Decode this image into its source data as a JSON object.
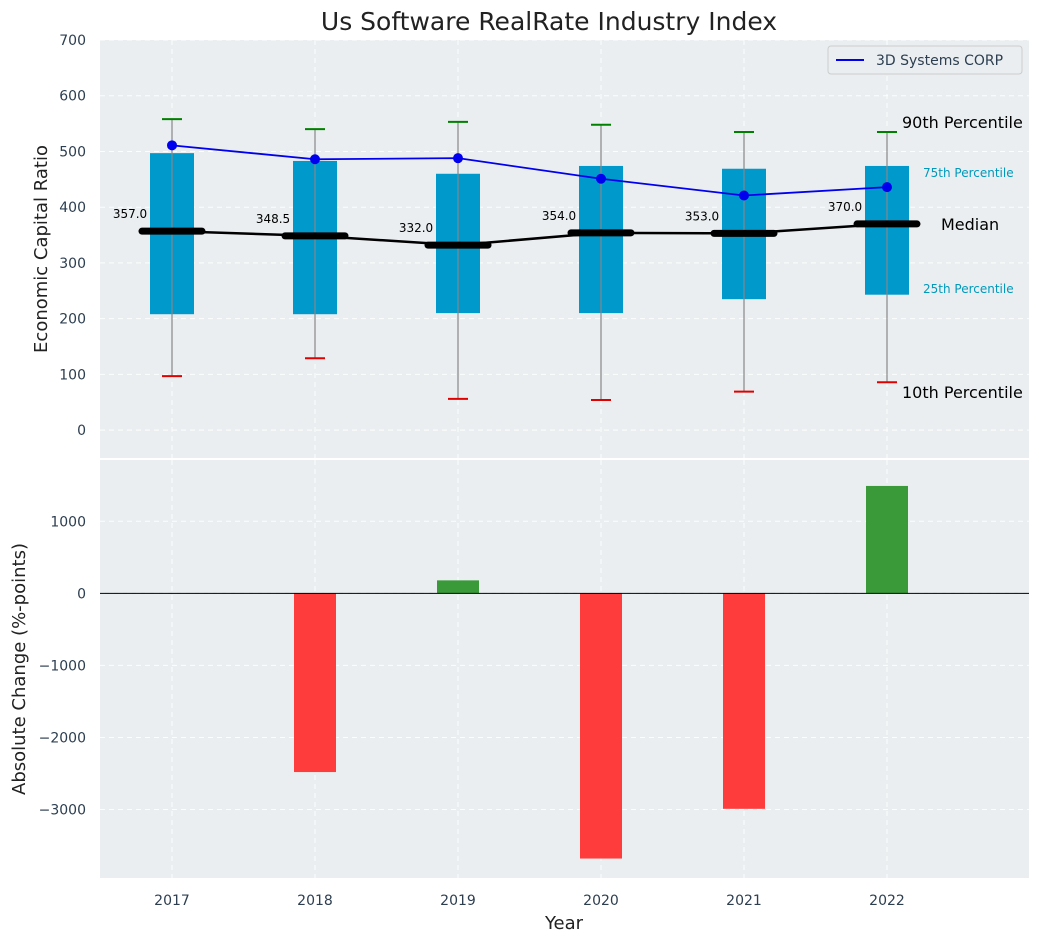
{
  "colors": {
    "background": "#eaeef0",
    "box": "#0099cc",
    "whisker": "#888888",
    "p90": "#008000",
    "p10": "#e00000",
    "median": "#000000",
    "company": "#0000ee",
    "positive": "#3a9a3a",
    "negative": "#ff3c3c",
    "percentile_text": "#0099bb"
  },
  "chart_data": [
    {
      "type": "box",
      "title": "Us Software RealRate Industry Index",
      "ylabel": "Economic Capital Ratio",
      "ylim": [
        -50,
        700
      ],
      "yticks": [
        0,
        100,
        200,
        300,
        400,
        500,
        600,
        700
      ],
      "categories": [
        "2017",
        "2018",
        "2019",
        "2020",
        "2021",
        "2022"
      ],
      "p10": [
        97,
        129,
        56,
        54,
        69,
        86
      ],
      "p25": [
        208,
        208,
        210,
        210,
        235,
        243
      ],
      "median": [
        357.0,
        348.5,
        332.0,
        354.0,
        353.0,
        370.0
      ],
      "median_labels": [
        "357.0",
        "348.5",
        "332.0",
        "354.0",
        "353.0",
        "370.0"
      ],
      "p75": [
        497,
        483,
        460,
        474,
        469,
        474
      ],
      "p90": [
        558,
        540,
        553,
        548,
        535,
        535
      ],
      "series": [
        {
          "name": "3D Systems CORP",
          "values": [
            511,
            486,
            488,
            451,
            421,
            436
          ]
        }
      ],
      "legend": {
        "label": "3D Systems CORP",
        "placement": "top-right"
      },
      "annotations": {
        "p90": "90th Percentile",
        "p75": "75th Percentile",
        "median": "Median",
        "p25": "25th Percentile",
        "p10": "10th Percentile"
      }
    },
    {
      "type": "bar",
      "ylabel": "Absolute Change (%-points)",
      "xlabel": "Year",
      "ylim": [
        -3950,
        1850
      ],
      "yticks": [
        -3000,
        -2000,
        -1000,
        0,
        1000
      ],
      "ytick_labels": [
        "−3000",
        "−2000",
        "−1000",
        "0",
        "1000"
      ],
      "categories": [
        "2017",
        "2018",
        "2019",
        "2020",
        "2021",
        "2022"
      ],
      "values": [
        0,
        -2480,
        180,
        -3680,
        -2990,
        1490
      ]
    }
  ]
}
